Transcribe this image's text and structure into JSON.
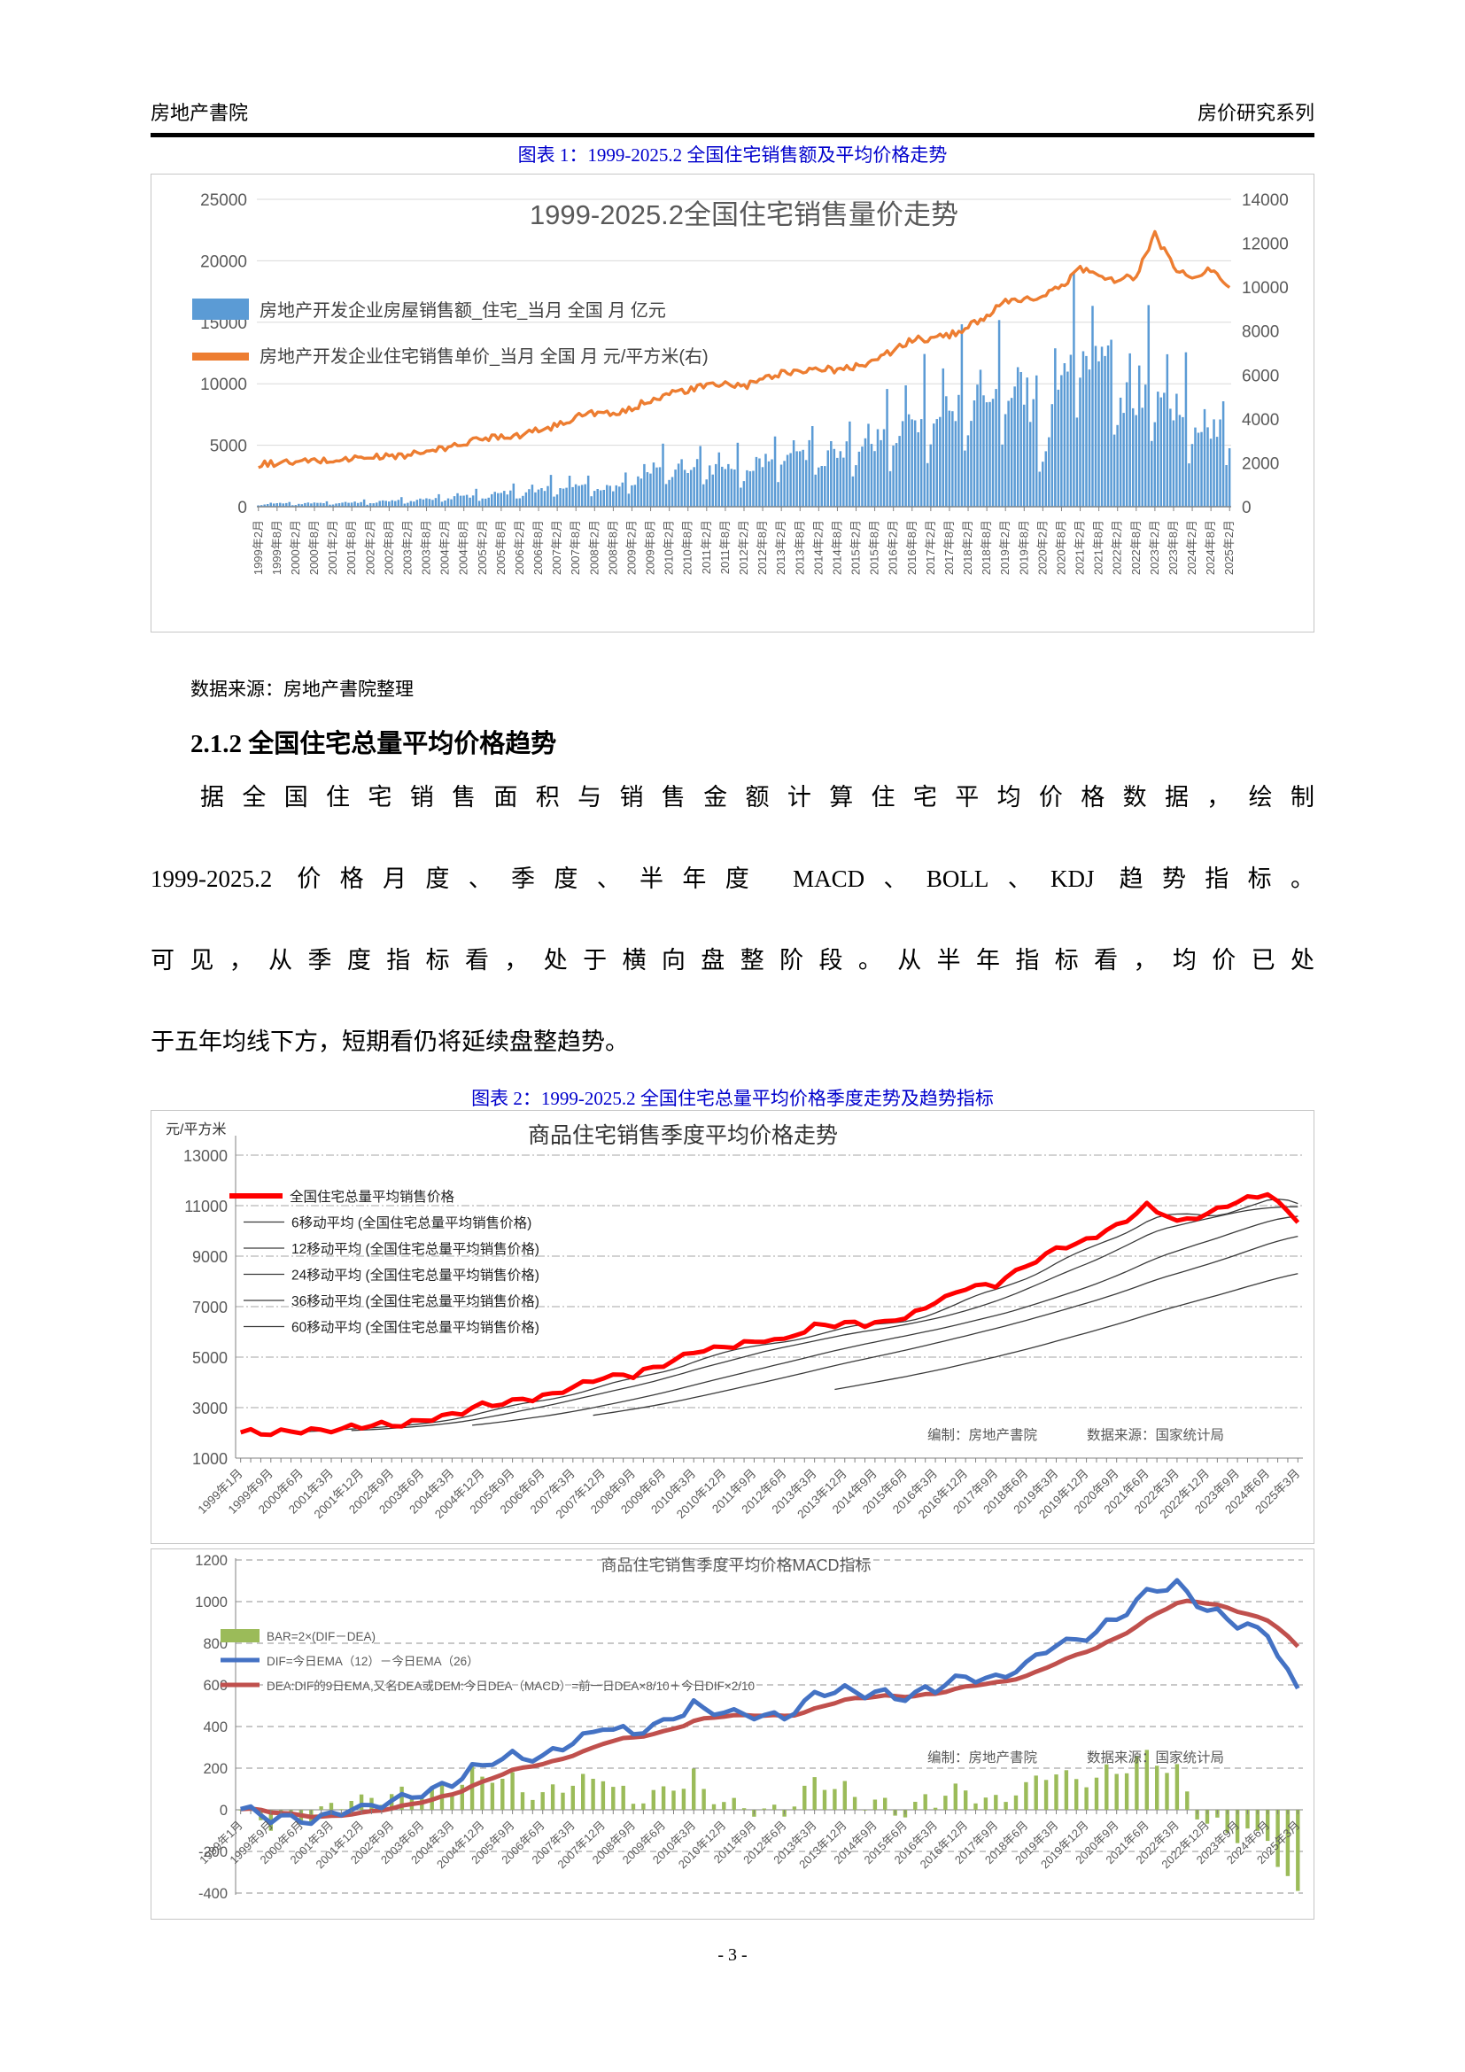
{
  "header": {
    "left_title": "房地产書院",
    "right_title": "房价研究系列"
  },
  "figure1": {
    "caption": "图表 1：1999-2025.2 全国住宅销售额及平均价格走势",
    "source_note": "数据来源：房地产書院整理"
  },
  "section": {
    "heading": "2.1.2 全国住宅总量平均价格趋势",
    "paragraph_lines": [
      "据全国住宅销售面积与销售金额计算住宅平均价格数据，绘制",
      "1999-2025.2 价格月度、季度、半年度 MACD、BOLL、KDJ 趋势指标。",
      "可见，从季度指标看，处于横向盘整阶段。从半年指标看，均价已处",
      "于五年均线下方，短期看仍将延续盘整趋势。"
    ]
  },
  "figure2": {
    "caption": "图表 2：1999-2025.2 全国住宅总量平均价格季度走势及趋势指标"
  },
  "footer": {
    "page_number": "- 3 -"
  },
  "colors": {
    "caption_blue": "#0000CC",
    "bar_blue": "#5B9BD5",
    "line_orange": "#ED7D31",
    "price_red": "#FF0000",
    "macd_bar_green": "#9BBB59",
    "dif_blue": "#4472C4",
    "dea_red": "#C0504D",
    "grid_gray": "#D9D9D9",
    "axis_gray": "#808080",
    "text_gray": "#595959"
  },
  "chart_data": [
    {
      "type": "bar",
      "combo": "bar+line, dual axis, monthly 1999.2-2025.2",
      "title": "1999-2025.2全国住宅销售量价走势",
      "left_axis": {
        "min": 0,
        "max": 25000,
        "step": 5000
      },
      "right_axis": {
        "min": 0,
        "max": 14000,
        "step": 2000
      },
      "months_per_tick": 6,
      "x_tick_labels": [
        "1999年2月",
        "1999年8月",
        "2000年2月",
        "2000年8月",
        "2001年2月",
        "2001年8月",
        "2002年2月",
        "2002年8月",
        "2003年2月",
        "2003年8月",
        "2004年2月",
        "2004年8月",
        "2005年2月",
        "2005年8月",
        "2006年2月",
        "2006年8月",
        "2007年2月",
        "2007年8月",
        "2008年2月",
        "2008年8月",
        "2009年2月",
        "2009年8月",
        "2010年2月",
        "2010年8月",
        "2011年2月",
        "2011年8月",
        "2012年2月",
        "2012年8月",
        "2013年2月",
        "2013年8月",
        "2014年2月",
        "2014年8月",
        "2015年2月",
        "2015年8月",
        "2016年2月",
        "2016年8月",
        "2017年2月",
        "2017年8月",
        "2018年2月",
        "2018年8月",
        "2019年2月",
        "2019年8月",
        "2020年2月",
        "2020年8月",
        "2021年2月",
        "2021年8月",
        "2022年2月",
        "2022年8月",
        "2023年2月",
        "2023年8月",
        "2024年2月",
        "2024年8月",
        "2025年2月"
      ],
      "series": [
        {
          "name": "房地产开发企业房屋销售额_住宅_当月 全国 月 亿元",
          "type": "bar",
          "axis": "left",
          "color": "#5B9BD5",
          "anchor_values": [
            100,
            250,
            150,
            300,
            200,
            350,
            250,
            450,
            350,
            600,
            500,
            800,
            600,
            1000,
            800,
            1300,
            1100,
            1700,
            1200,
            1400,
            1600,
            2800,
            2200,
            3000,
            2500,
            3200,
            2200,
            3500,
            3200,
            4200,
            3200,
            4000,
            3300,
            5000,
            4400,
            6500,
            5600,
            7500,
            6500,
            8500,
            7000,
            9000,
            3200,
            11000,
            10200,
            11300,
            6500,
            8500,
            7500,
            7800,
            4800,
            6200,
            4500
          ]
        },
        {
          "name": "房地产开发企业住宅销售单价_当月 全国 月 元/平方米(右)",
          "type": "line",
          "axis": "right",
          "color": "#ED7D31",
          "anchor_values": [
            1900,
            2000,
            2000,
            2100,
            2100,
            2200,
            2250,
            2300,
            2350,
            2500,
            2650,
            2900,
            3100,
            3250,
            3250,
            3500,
            3700,
            4100,
            4300,
            4150,
            4450,
            4900,
            5150,
            5300,
            5500,
            5600,
            5450,
            5800,
            6100,
            6200,
            6300,
            6200,
            6400,
            6700,
            7100,
            7600,
            7650,
            7800,
            8200,
            8700,
            9300,
            9400,
            9600,
            10000,
            10900,
            10500,
            10300,
            10500,
            12400,
            10900,
            10400,
            10800,
            10100
          ]
        }
      ]
    },
    {
      "type": "line",
      "title": "商品住宅销售季度平均价格走势",
      "y_axis_label": "元/平方米",
      "y_axis": {
        "min": 1000,
        "max": 13000,
        "step": 2000
      },
      "quarters_per_tick": 3,
      "x_tick_labels": [
        "1999年1月",
        "1999年9月",
        "2000年6月",
        "2001年3月",
        "2001年12月",
        "2002年9月",
        "2003年6月",
        "2004年3月",
        "2004年12月",
        "2005年9月",
        "2006年6月",
        "2007年3月",
        "2007年12月",
        "2008年9月",
        "2009年6月",
        "2010年3月",
        "2010年12月",
        "2011年9月",
        "2012年6月",
        "2013年3月",
        "2013年12月",
        "2014年9月",
        "2015年6月",
        "2016年3月",
        "2016年12月",
        "2017年9月",
        "2018年6月",
        "2019年3月",
        "2019年12月",
        "2020年9月",
        "2021年6月",
        "2022年3月",
        "2022年12月",
        "2023年9月",
        "2024年6月",
        "2025年3月"
      ],
      "series_name": "全国住宅总量平均销售价格",
      "anchor_values": [
        2050,
        2000,
        2100,
        2150,
        2250,
        2320,
        2480,
        2700,
        3100,
        3250,
        3420,
        3800,
        4200,
        4300,
        4700,
        5200,
        5400,
        5600,
        5700,
        6200,
        6350,
        6300,
        6600,
        7200,
        7700,
        7900,
        8600,
        9300,
        9600,
        10200,
        11000,
        10400,
        10700,
        11200,
        11500,
        10400
      ],
      "moving_average_windows": [
        6,
        12,
        24,
        36,
        60
      ],
      "legend": [
        "全国住宅总量平均销售价格",
        "6移动平均 (全国住宅总量平均销售价格)",
        "12移动平均 (全国住宅总量平均销售价格)",
        "24移动平均 (全国住宅总量平均销售价格)",
        "36移动平均 (全国住宅总量平均销售价格)",
        "60移动平均 (全国住宅总量平均销售价格)"
      ],
      "annotation_left": "编制：房地产書院",
      "annotation_right": "数据来源：国家统计局"
    },
    {
      "type": "bar",
      "combo": "MACD bar+2 lines, quarterly",
      "title": "商品住宅销售季度平均价格MACD指标",
      "y_axis": {
        "min": -400,
        "max": 1200,
        "step": 200
      },
      "x_tick_labels": [
        "1999年1月",
        "1999年9月",
        "2000年6月",
        "2001年3月",
        "2001年12月",
        "2002年9月",
        "2003年6月",
        "2004年3月",
        "2004年12月",
        "2005年9月",
        "2006年6月",
        "2007年3月",
        "2007年12月",
        "2008年9月",
        "2009年6月",
        "2010年3月",
        "2010年12月",
        "2011年9月",
        "2012年6月",
        "2013年3月",
        "2013年12月",
        "2014年9月",
        "2015年6月",
        "2016年3月",
        "2016年12月",
        "2017年9月",
        "2018年6月",
        "2019年3月",
        "2019年12月",
        "2020年9月",
        "2021年6月",
        "2022年3月",
        "2022年12月",
        "2023年9月",
        "2024年6月",
        "2025年3月"
      ],
      "legend": [
        {
          "label": "BAR=2×(DIF－DEA)",
          "color": "#9BBB59",
          "swatch": "bar"
        },
        {
          "label": "DIF=今日EMA（12）－今日EMA（26）",
          "color": "#4472C4",
          "swatch": "line"
        },
        {
          "label": "DEA:DIF的9日EMA,又名DEA或DEM:今日DEA（MACD）=前一日DEA×8/10＋今日DIF×2/10",
          "color": "#C0504D",
          "swatch": "line"
        }
      ],
      "dif_anchor_values": [
        0,
        -40,
        -55,
        -25,
        10,
        40,
        75,
        130,
        220,
        260,
        250,
        330,
        400,
        370,
        420,
        500,
        470,
        450,
        440,
        550,
        580,
        560,
        540,
        590,
        640,
        630,
        700,
        800,
        830,
        920,
        1050,
        1080,
        960,
        900,
        840,
        580
      ],
      "dea_formula": "EMA9(DIF): DEA=前一日DEA×8/10＋今日DIF×2/10",
      "bar_formula": "2×(DIF－DEA)",
      "annotation_left": "编制：房地产書院",
      "annotation_right": "数据来源：国家统计局"
    }
  ]
}
